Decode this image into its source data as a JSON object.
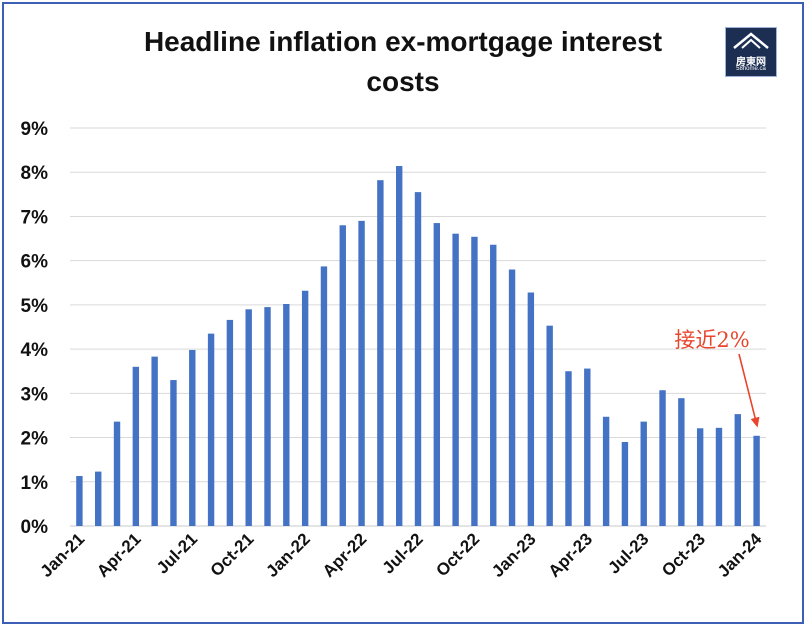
{
  "logo": {
    "text": "房東网",
    "subtext": "58home.ca"
  },
  "chart_data": {
    "type": "bar",
    "title": "Headline inflation ex-mortgage interest costs",
    "title_lines": [
      "Headline inflation ex-mortgage interest",
      "costs"
    ],
    "xlabel": "",
    "ylabel": "",
    "ylim": [
      0,
      9
    ],
    "yticks": [
      "0%",
      "1%",
      "2%",
      "3%",
      "4%",
      "5%",
      "6%",
      "7%",
      "8%",
      "9%"
    ],
    "grid": true,
    "legend": "none",
    "color": "#4472c4",
    "categories": [
      "Jan-21",
      "Feb-21",
      "Mar-21",
      "Apr-21",
      "May-21",
      "Jun-21",
      "Jul-21",
      "Aug-21",
      "Sep-21",
      "Oct-21",
      "Nov-21",
      "Dec-21",
      "Jan-22",
      "Feb-22",
      "Mar-22",
      "Apr-22",
      "May-22",
      "Jun-22",
      "Jul-22",
      "Aug-22",
      "Sep-22",
      "Oct-22",
      "Nov-22",
      "Dec-22",
      "Jan-23",
      "Feb-23",
      "Mar-23",
      "Apr-23",
      "May-23",
      "Jun-23",
      "Jul-23",
      "Aug-23",
      "Sep-23",
      "Oct-23",
      "Nov-23",
      "Dec-23",
      "Jan-24"
    ],
    "tick_labels": [
      "Jan-21",
      "Apr-21",
      "Jul-21",
      "Oct-21",
      "Jan-22",
      "Apr-22",
      "Jul-22",
      "Oct-22",
      "Jan-23",
      "Apr-23",
      "Jul-23",
      "Oct-23",
      "Jan-24"
    ],
    "values": [
      1.13,
      1.23,
      2.36,
      3.6,
      3.83,
      3.3,
      3.98,
      4.35,
      4.66,
      4.9,
      4.95,
      5.02,
      5.32,
      5.87,
      6.8,
      6.9,
      7.82,
      8.14,
      7.55,
      6.85,
      6.61,
      6.54,
      6.36,
      5.8,
      5.28,
      4.53,
      3.5,
      3.56,
      2.47,
      1.9,
      2.36,
      3.07,
      2.89,
      2.21,
      2.22,
      2.53,
      2.04
    ],
    "annotation": {
      "text": "接近2%",
      "target": "Jan-24",
      "color": "#e8452c"
    }
  }
}
